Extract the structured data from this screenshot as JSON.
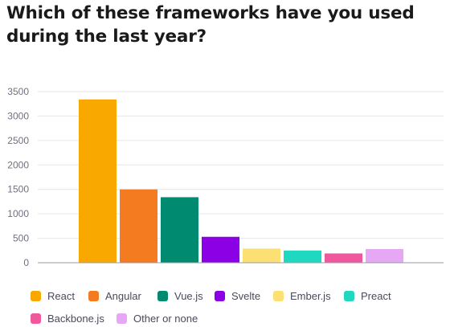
{
  "title": "Which of these frameworks have you used during the last year?",
  "colors": {
    "grid": "#e6e6ec",
    "axis": "#9a9aa6"
  },
  "chart_data": {
    "type": "bar",
    "title": "Which of these frameworks have you used during the last year?",
    "xlabel": "",
    "ylabel": "",
    "ylim": [
      0,
      3500
    ],
    "yticks": [
      0,
      500,
      1000,
      1500,
      2000,
      2500,
      3000,
      3500
    ],
    "grid": true,
    "legend_position": "bottom",
    "categories": [
      "React",
      "Angular",
      "Vue.js",
      "Svelte",
      "Ember.js",
      "Preact",
      "Backbone.js",
      "Other or none"
    ],
    "values": [
      3340,
      1500,
      1340,
      530,
      290,
      250,
      190,
      280
    ],
    "bar_colors": [
      "#f9a800",
      "#f47b20",
      "#008a70",
      "#8c00e6",
      "#fde074",
      "#1fd8c0",
      "#f0589e",
      "#e6a8f5"
    ]
  }
}
